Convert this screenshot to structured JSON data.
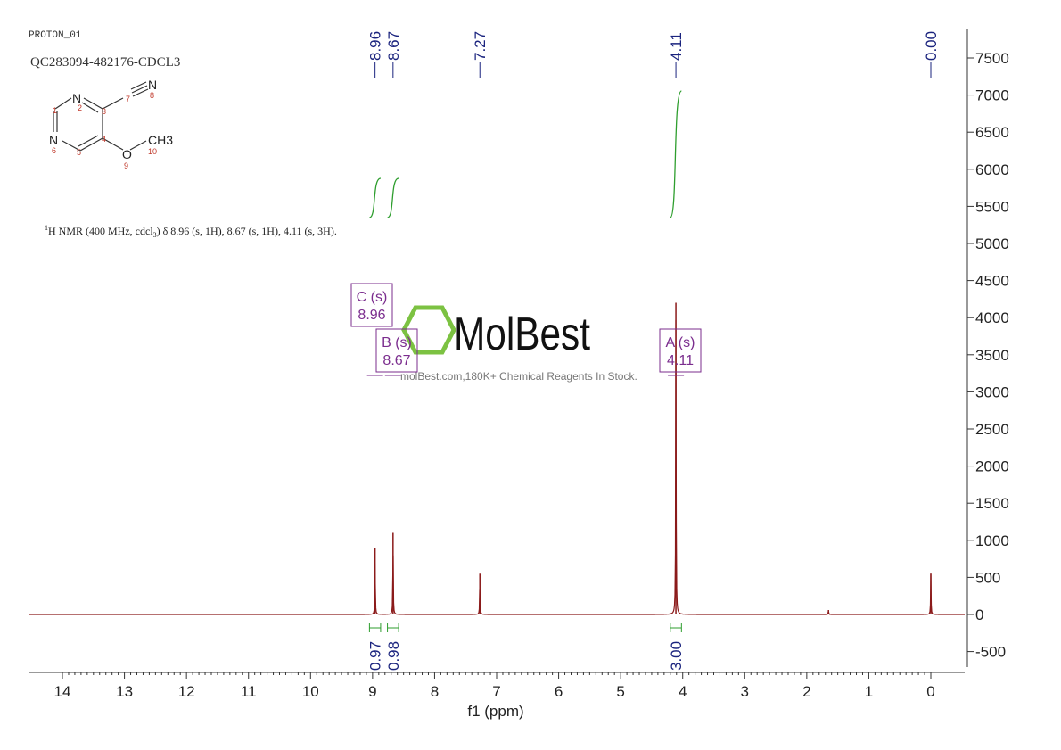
{
  "header": {
    "experiment": "PROTON_01",
    "sample": "QC283094-482176-CDCL3",
    "nmr_description_sup": "1",
    "nmr_description_pre": "H NMR (400 MHz, cdcl",
    "nmr_description_sub": "3",
    "nmr_description_post": ") δ 8.96 (s, 1H), 8.67 (s, 1H), 4.11 (s, 3H)."
  },
  "structure": {
    "atoms": [
      "N",
      "N",
      "N",
      "O",
      "CH3"
    ],
    "numbers": [
      "1",
      "2",
      "3",
      "4",
      "5",
      "6",
      "7",
      "8",
      "9",
      "10"
    ]
  },
  "watermark": {
    "brand": "MolBest",
    "tagline": "molBest.com,180K+ Chemical Reagents In Stock."
  },
  "chart_data": {
    "type": "line",
    "xlabel": "f1 (ppm)",
    "ylabel": "",
    "xlim": [
      14.55,
      -0.55
    ],
    "ylim": [
      -700,
      7900
    ],
    "x_ticks": [
      14,
      13,
      12,
      11,
      10,
      9,
      8,
      7,
      6,
      5,
      4,
      3,
      2,
      1,
      0
    ],
    "y_ticks": [
      -500,
      0,
      500,
      1000,
      1500,
      2000,
      2500,
      3000,
      3500,
      4000,
      4500,
      5000,
      5500,
      6000,
      6500,
      7000,
      7500
    ],
    "peaks": [
      {
        "ppm": 8.96,
        "height": 900
      },
      {
        "ppm": 8.67,
        "height": 1100
      },
      {
        "ppm": 7.27,
        "height": 550
      },
      {
        "ppm": 4.11,
        "height": 4200
      },
      {
        "ppm": 1.65,
        "height": 60
      },
      {
        "ppm": 0.0,
        "height": 550
      }
    ],
    "peak_labels": [
      "8.96",
      "8.67",
      "7.27",
      "4.11",
      "0.00"
    ],
    "peak_label_ppm": [
      8.96,
      8.67,
      7.27,
      4.11,
      0.0
    ],
    "multiplets": [
      {
        "label": "C (s)",
        "shift": "8.96",
        "ppm": 8.96
      },
      {
        "label": "B (s)",
        "shift": "8.67",
        "ppm": 8.67
      },
      {
        "label": "A (s)",
        "shift": "4.11",
        "ppm": 4.11
      }
    ],
    "integrals": [
      {
        "value": "0.97",
        "from": 9.05,
        "to": 8.87
      },
      {
        "value": "0.98",
        "from": 8.76,
        "to": 8.58
      },
      {
        "value": "3.00",
        "from": 4.2,
        "to": 4.02
      }
    ],
    "colors": {
      "spectrum": "#8b1a1a",
      "peak_label": "#1a237e",
      "integral": "#2e9e2e",
      "multiplet": "#7b2d8e",
      "axis": "#333333"
    }
  }
}
